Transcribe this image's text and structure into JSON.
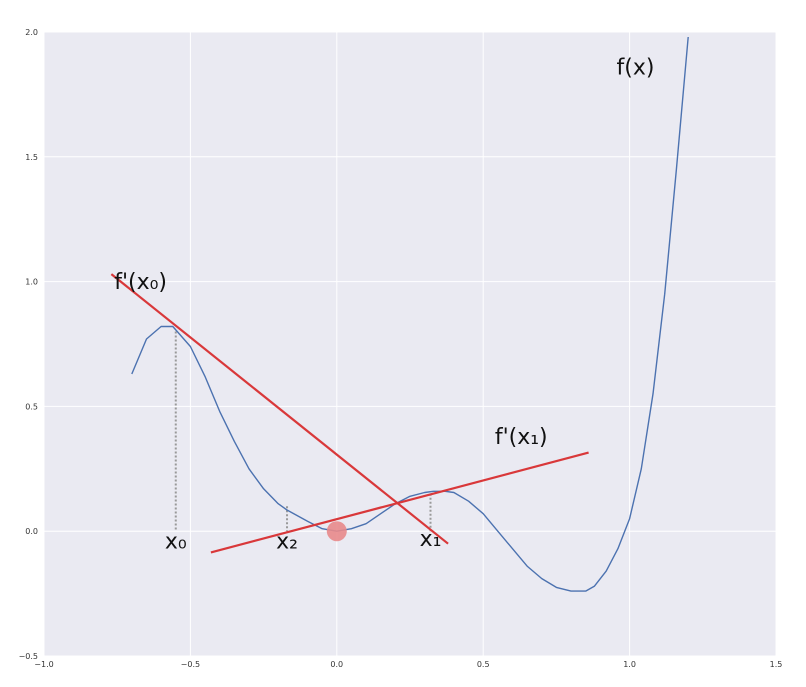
{
  "chart_data": {
    "type": "line",
    "title": "",
    "xlabel": "",
    "ylabel": "",
    "xlim": [
      -1.0,
      1.5
    ],
    "ylim": [
      -0.5,
      2.0
    ],
    "grid": true,
    "xticks": [
      "−1.0",
      "−0.5",
      "0.0",
      "0.5",
      "1.0",
      "1.5"
    ],
    "yticks": [
      "−0.5",
      "0.0",
      "0.5",
      "1.0",
      "1.5",
      "2.0"
    ],
    "xtick_values": [
      -1.0,
      -0.5,
      0.0,
      0.5,
      1.0,
      1.5
    ],
    "ytick_values": [
      -0.5,
      0.0,
      0.5,
      1.0,
      1.5,
      2.0
    ],
    "colors": {
      "curve": "#4c72b0",
      "tangent": "#d9383a",
      "point": "#e8898b",
      "background": "#eaeaf2",
      "grid": "#ffffff",
      "guide": "#999999"
    },
    "series": [
      {
        "x": [
          -0.7,
          -0.65,
          -0.6,
          -0.56,
          -0.5,
          -0.45,
          -0.4,
          -0.35,
          -0.3,
          -0.25,
          -0.2,
          -0.17,
          -0.1,
          -0.05,
          0.0,
          0.05,
          0.1,
          0.15,
          0.2,
          0.25,
          0.3,
          0.33,
          0.37,
          0.4,
          0.45,
          0.5,
          0.55,
          0.6,
          0.65,
          0.7,
          0.75,
          0.8,
          0.85,
          0.88,
          0.92,
          0.96,
          1.0,
          1.04,
          1.08,
          1.12,
          1.16,
          1.2
        ],
        "values": [
          0.63,
          0.77,
          0.82,
          0.82,
          0.74,
          0.62,
          0.48,
          0.36,
          0.25,
          0.17,
          0.11,
          0.085,
          0.04,
          0.01,
          0.0,
          0.01,
          0.03,
          0.07,
          0.11,
          0.14,
          0.155,
          0.16,
          0.16,
          0.155,
          0.12,
          0.07,
          0.0,
          -0.07,
          -0.14,
          -0.19,
          -0.225,
          -0.24,
          -0.24,
          -0.22,
          -0.16,
          -0.07,
          0.05,
          0.25,
          0.55,
          0.95,
          1.45,
          1.98
        ]
      }
    ],
    "tangent_lines": [
      {
        "label": "f'(x₀)",
        "x": [
          -0.77,
          0.38
        ],
        "y": [
          1.03,
          -0.05
        ]
      },
      {
        "label": "f'(x₁)",
        "x": [
          -0.43,
          0.86
        ],
        "y": [
          -0.085,
          0.315
        ]
      }
    ],
    "guide_lines": [
      {
        "label": "x₀",
        "x": -0.55,
        "y": 0.8
      },
      {
        "label": "x₂",
        "x": -0.17,
        "y": 0.1
      },
      {
        "label": "x₁",
        "x": 0.32,
        "y": 0.15
      }
    ],
    "point": {
      "x": 0.0,
      "y": 0.0
    },
    "annotations": [
      {
        "text": "f(x)",
        "x": 1.02,
        "y": 1.83
      },
      {
        "text": "f'(x₀)",
        "x": -0.67,
        "y": 0.97
      },
      {
        "text": "f'(x₁)",
        "x": 0.63,
        "y": 0.35
      },
      {
        "text": "x₀",
        "x": -0.55,
        "y": -0.07
      },
      {
        "text": "x₂",
        "x": -0.17,
        "y": -0.07
      },
      {
        "text": "x₁",
        "x": 0.32,
        "y": -0.06
      }
    ]
  }
}
